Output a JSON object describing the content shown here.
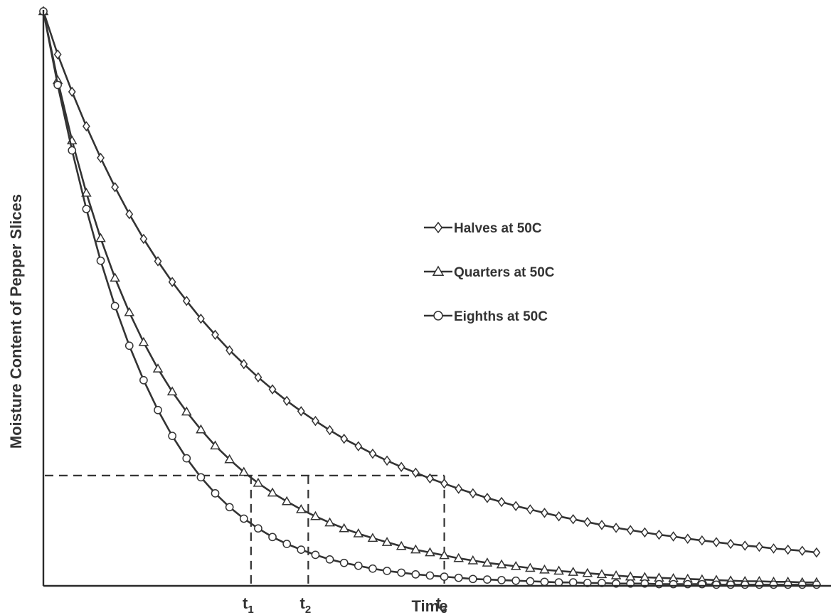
{
  "chart_data": {
    "type": "line",
    "xlabel": "Time",
    "ylabel": "Moisture Content of Pepper Slices",
    "xlim": [
      0,
      110
    ],
    "ylim": [
      0,
      1.0
    ],
    "grid": false,
    "legend_position": "right",
    "x": [
      0,
      2,
      4,
      6,
      8,
      10,
      12,
      14,
      16,
      18,
      20,
      22,
      24,
      26,
      28,
      30,
      32,
      34,
      36,
      38,
      40,
      42,
      44,
      46,
      48,
      50,
      52,
      54,
      56,
      58,
      60,
      62,
      64,
      66,
      68,
      70,
      72,
      74,
      76,
      78,
      80,
      82,
      84,
      86,
      88,
      90,
      92,
      94,
      96,
      98,
      100,
      102,
      104,
      106,
      108
    ],
    "series": [
      {
        "name": "Halves at 50C",
        "marker": "diamond",
        "color": "#333333",
        "values": [
          1.0,
          0.925,
          0.86,
          0.8,
          0.745,
          0.694,
          0.647,
          0.604,
          0.565,
          0.529,
          0.496,
          0.465,
          0.437,
          0.41,
          0.386,
          0.363,
          0.342,
          0.322,
          0.304,
          0.287,
          0.271,
          0.256,
          0.243,
          0.23,
          0.218,
          0.207,
          0.197,
          0.187,
          0.178,
          0.169,
          0.161,
          0.153,
          0.146,
          0.139,
          0.133,
          0.127,
          0.121,
          0.116,
          0.111,
          0.106,
          0.101,
          0.097,
          0.093,
          0.089,
          0.086,
          0.082,
          0.079,
          0.076,
          0.073,
          0.07,
          0.068,
          0.065,
          0.063,
          0.061,
          0.058
        ]
      },
      {
        "name": "Quarters at 50C",
        "marker": "triangle",
        "color": "#333333",
        "values": [
          1.0,
          0.88,
          0.775,
          0.684,
          0.605,
          0.536,
          0.476,
          0.424,
          0.378,
          0.338,
          0.303,
          0.272,
          0.244,
          0.22,
          0.198,
          0.179,
          0.162,
          0.147,
          0.133,
          0.121,
          0.11,
          0.1,
          0.091,
          0.083,
          0.076,
          0.069,
          0.063,
          0.058,
          0.053,
          0.048,
          0.044,
          0.04,
          0.037,
          0.034,
          0.031,
          0.028,
          0.026,
          0.024,
          0.022,
          0.02,
          0.018,
          0.016,
          0.015,
          0.014,
          0.013,
          0.012,
          0.011,
          0.01,
          0.009,
          0.008,
          0.008,
          0.007,
          0.007,
          0.006,
          0.006
        ]
      },
      {
        "name": "Eighths at 50C",
        "marker": "circle",
        "color": "#333333",
        "values": [
          1.0,
          0.872,
          0.758,
          0.656,
          0.566,
          0.487,
          0.418,
          0.358,
          0.306,
          0.261,
          0.222,
          0.189,
          0.161,
          0.137,
          0.117,
          0.1,
          0.085,
          0.073,
          0.063,
          0.054,
          0.046,
          0.04,
          0.035,
          0.03,
          0.026,
          0.023,
          0.02,
          0.018,
          0.016,
          0.014,
          0.012,
          0.011,
          0.01,
          0.009,
          0.008,
          0.007,
          0.006,
          0.006,
          0.005,
          0.005,
          0.004,
          0.004,
          0.004,
          0.003,
          0.003,
          0.003,
          0.003,
          0.002,
          0.002,
          0.002,
          0.002,
          0.002,
          0.002,
          0.002,
          0.002
        ]
      }
    ],
    "reference": {
      "y": 0.192,
      "x_ticks": [
        {
          "label": "t",
          "sub": "1",
          "x": 29
        },
        {
          "label": "t",
          "sub": "2",
          "x": 37
        },
        {
          "label": "t",
          "sub": "3",
          "x": 56
        }
      ]
    }
  }
}
